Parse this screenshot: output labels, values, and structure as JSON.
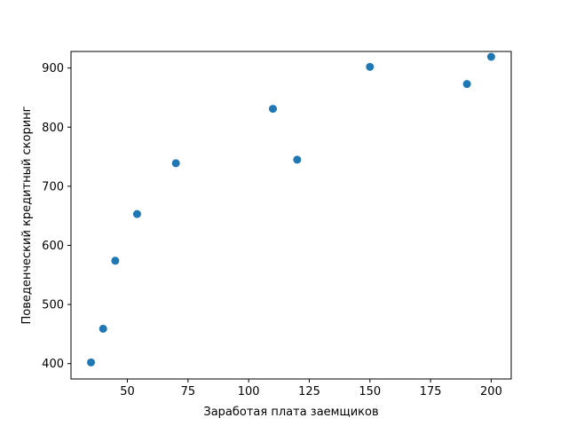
{
  "chart_data": {
    "type": "scatter",
    "title": "",
    "xlabel": "Заработая плата заемщиков",
    "ylabel": "Поведенческий кредитный скоринг",
    "xlim": [
      26.75,
      208.25
    ],
    "ylim": [
      374,
      928
    ],
    "xticks": [
      50,
      75,
      100,
      125,
      150,
      175,
      200
    ],
    "yticks": [
      400,
      500,
      600,
      700,
      800,
      900
    ],
    "marker_color": "#1f77b4",
    "grid": false,
    "series": [
      {
        "name": "",
        "x": [
          35,
          40,
          45,
          54,
          70,
          110,
          120,
          150,
          190,
          200
        ],
        "y": [
          402,
          459,
          574,
          653,
          739,
          831,
          745,
          902,
          873,
          919
        ]
      }
    ]
  }
}
